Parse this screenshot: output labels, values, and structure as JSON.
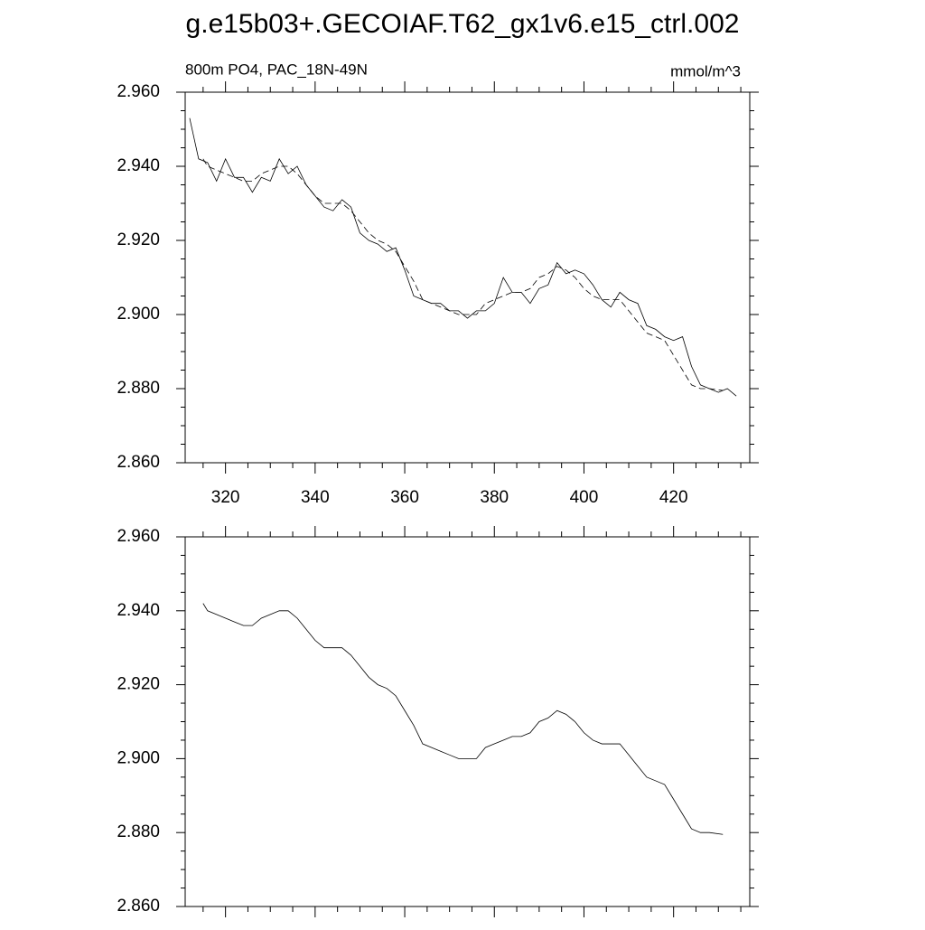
{
  "title": "g.e15b03+.GECOIAF.T62_gx1v6.e15_ctrl.002",
  "chart_data": [
    {
      "type": "line",
      "left_label": "800m PO4, PAC_18N-49N",
      "right_label": "mmol/m^3",
      "xlim": [
        311,
        437
      ],
      "ylim": [
        2.86,
        2.96
      ],
      "x_tick_labels": true,
      "minor_per_major": 4,
      "xticks": [
        320,
        340,
        360,
        380,
        400,
        420
      ],
      "yticks": [
        {
          "value": 2.86,
          "label": "2.860"
        },
        {
          "value": 2.88,
          "label": "2.880"
        },
        {
          "value": 2.9,
          "label": "2.900"
        },
        {
          "value": 2.92,
          "label": "2.920"
        },
        {
          "value": 2.94,
          "label": "2.940"
        },
        {
          "value": 2.96,
          "label": "2.960"
        }
      ],
      "series": [
        {
          "color": "#000000",
          "dash": false,
          "x": [
            312,
            314,
            316,
            318,
            320,
            322,
            324,
            326,
            328,
            330,
            332,
            334,
            336,
            338,
            340,
            342,
            344,
            346,
            348,
            350,
            352,
            354,
            356,
            358,
            360,
            362,
            364,
            366,
            368,
            370,
            372,
            374,
            376,
            378,
            380,
            382,
            384,
            386,
            388,
            390,
            392,
            394,
            396,
            398,
            400,
            402,
            404,
            406,
            408,
            410,
            412,
            414,
            416,
            418,
            420,
            422,
            424,
            426,
            428,
            430,
            432,
            434
          ],
          "values": [
            2.953,
            2.942,
            2.941,
            2.936,
            2.942,
            2.937,
            2.937,
            2.933,
            2.937,
            2.936,
            2.942,
            2.938,
            2.94,
            2.935,
            2.932,
            2.929,
            2.928,
            2.931,
            2.929,
            2.922,
            2.92,
            2.919,
            2.917,
            2.918,
            2.912,
            2.905,
            2.904,
            2.903,
            2.903,
            2.901,
            2.901,
            2.899,
            2.901,
            2.901,
            2.903,
            2.91,
            2.906,
            2.906,
            2.903,
            2.907,
            2.908,
            2.914,
            2.911,
            2.912,
            2.911,
            2.908,
            2.904,
            2.902,
            2.906,
            2.904,
            2.903,
            2.897,
            2.896,
            2.894,
            2.893,
            2.894,
            2.886,
            2.881,
            2.88,
            2.879,
            2.88,
            2.878
          ]
        },
        {
          "color": "#000000",
          "dash": true,
          "x": [
            315,
            316,
            318,
            320,
            322,
            324,
            326,
            328,
            330,
            332,
            334,
            336,
            338,
            340,
            342,
            344,
            346,
            348,
            350,
            352,
            354,
            356,
            358,
            360,
            362,
            364,
            366,
            368,
            370,
            372,
            374,
            376,
            378,
            380,
            382,
            384,
            386,
            388,
            390,
            392,
            394,
            396,
            398,
            400,
            402,
            404,
            406,
            408,
            410,
            412,
            414,
            416,
            418,
            420,
            422,
            424,
            426,
            428,
            431
          ],
          "values": [
            2.942,
            2.94,
            2.939,
            2.938,
            2.937,
            2.936,
            2.936,
            2.938,
            2.939,
            2.94,
            2.94,
            2.938,
            2.935,
            2.932,
            2.93,
            2.93,
            2.93,
            2.928,
            2.925,
            2.922,
            2.92,
            2.919,
            2.917,
            2.913,
            2.909,
            2.904,
            2.903,
            2.902,
            2.901,
            2.9,
            2.9,
            2.9,
            2.903,
            2.904,
            2.905,
            2.906,
            2.906,
            2.907,
            2.91,
            2.911,
            2.913,
            2.912,
            2.91,
            2.907,
            2.905,
            2.904,
            2.904,
            2.904,
            2.901,
            2.898,
            2.895,
            2.894,
            2.893,
            2.889,
            2.885,
            2.881,
            2.88,
            2.88,
            2.8795
          ]
        }
      ]
    },
    {
      "type": "line",
      "xlim": [
        311,
        437
      ],
      "ylim": [
        2.86,
        2.96
      ],
      "x_tick_labels": false,
      "minor_per_major": 4,
      "xticks": [
        320,
        340,
        360,
        380,
        400,
        420
      ],
      "yticks": [
        {
          "value": 2.86,
          "label": "2.860"
        },
        {
          "value": 2.88,
          "label": "2.880"
        },
        {
          "value": 2.9,
          "label": "2.900"
        },
        {
          "value": 2.92,
          "label": "2.920"
        },
        {
          "value": 2.94,
          "label": "2.940"
        },
        {
          "value": 2.96,
          "label": "2.960"
        }
      ],
      "series": [
        {
          "color": "#000000",
          "dash": false,
          "x": [
            315,
            316,
            318,
            320,
            322,
            324,
            326,
            328,
            330,
            332,
            334,
            336,
            338,
            340,
            342,
            344,
            346,
            348,
            350,
            352,
            354,
            356,
            358,
            360,
            362,
            364,
            366,
            368,
            370,
            372,
            374,
            376,
            378,
            380,
            382,
            384,
            386,
            388,
            390,
            392,
            394,
            396,
            398,
            400,
            402,
            404,
            406,
            408,
            410,
            412,
            414,
            416,
            418,
            420,
            422,
            424,
            426,
            428,
            431
          ],
          "values": [
            2.942,
            2.94,
            2.939,
            2.938,
            2.937,
            2.936,
            2.936,
            2.938,
            2.939,
            2.94,
            2.94,
            2.938,
            2.935,
            2.932,
            2.93,
            2.93,
            2.93,
            2.928,
            2.925,
            2.922,
            2.92,
            2.919,
            2.917,
            2.913,
            2.909,
            2.904,
            2.903,
            2.902,
            2.901,
            2.9,
            2.9,
            2.9,
            2.903,
            2.904,
            2.905,
            2.906,
            2.906,
            2.907,
            2.91,
            2.911,
            2.913,
            2.912,
            2.91,
            2.907,
            2.905,
            2.904,
            2.904,
            2.904,
            2.901,
            2.898,
            2.895,
            2.894,
            2.893,
            2.889,
            2.885,
            2.881,
            2.88,
            2.88,
            2.8795
          ]
        }
      ]
    }
  ]
}
